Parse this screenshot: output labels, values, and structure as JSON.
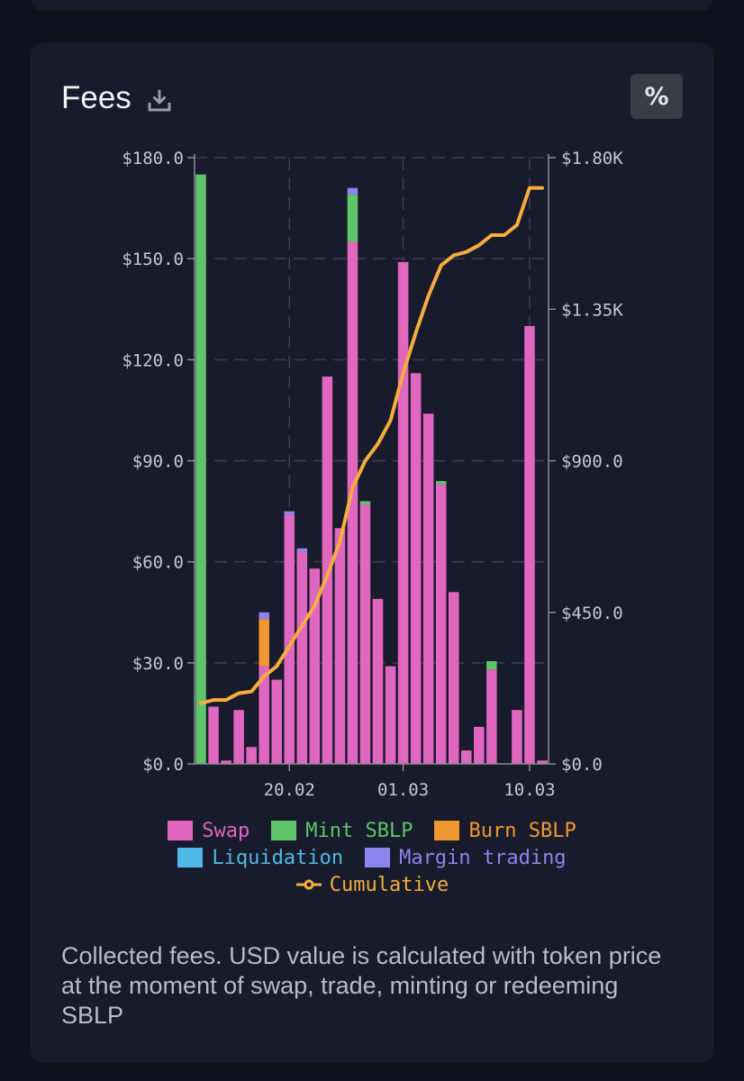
{
  "card": {
    "title": "Fees",
    "percent_label": "%"
  },
  "caption": "Collected fees. USD value is calculated with token price at the moment of swap, trade, minting or redeeming SBLP",
  "colors": {
    "swap": "#e066c0",
    "mint": "#5ec56a",
    "burn": "#f0982f",
    "liquidation": "#4fb8e8",
    "margin": "#8e84f0",
    "cumulative": "#f5ad3e"
  },
  "chart_data": {
    "type": "bar",
    "stacked": true,
    "x_tick_labels": [
      "20.02",
      "01.03",
      "10.03"
    ],
    "y_left": {
      "ticks": [
        "$0.0",
        "$30.0",
        "$60.0",
        "$90.0",
        "$120.0",
        "$150.0",
        "$180.0"
      ],
      "ylim": [
        0,
        180
      ]
    },
    "y_right": {
      "ticks": [
        "$0.0",
        "$450.0",
        "$900.0",
        "$1.35K",
        "$1.80K"
      ],
      "ylim": [
        0,
        1800
      ]
    },
    "legend": [
      "Swap",
      "Mint SBLP",
      "Burn SBLP",
      "Liquidation",
      "Margin trading",
      "Cumulative"
    ],
    "series": [
      {
        "name": "Swap",
        "values": [
          0,
          17,
          1,
          16,
          5,
          29,
          25,
          74,
          63,
          58,
          115,
          70,
          155,
          77,
          49,
          29,
          149,
          116,
          104,
          83,
          51,
          4,
          11,
          28,
          0,
          16,
          130,
          1
        ]
      },
      {
        "name": "Mint SBLP",
        "values": [
          175,
          0,
          0,
          0,
          0,
          0,
          0,
          0,
          0,
          0,
          0,
          0,
          14,
          1,
          0,
          0,
          0,
          0,
          0,
          1,
          0,
          0,
          0,
          2.5,
          0,
          0,
          0,
          0
        ]
      },
      {
        "name": "Burn SBLP",
        "values": [
          0,
          0,
          0,
          0,
          0,
          14,
          0,
          0,
          0,
          0,
          0,
          0,
          0,
          0,
          0,
          0,
          0,
          0,
          0,
          0,
          0,
          0,
          0,
          0,
          0,
          0,
          0,
          0
        ]
      },
      {
        "name": "Liquidation",
        "values": [
          0,
          0,
          0,
          0,
          0,
          0,
          0,
          0,
          0,
          0,
          0,
          0,
          0,
          0,
          0,
          0,
          0,
          0,
          0,
          0,
          0,
          0,
          0,
          0,
          0,
          0,
          0,
          0
        ]
      },
      {
        "name": "Margin trading",
        "values": [
          0,
          0,
          0,
          0,
          0,
          2,
          0,
          1,
          1,
          0,
          0,
          0,
          2,
          0,
          0,
          0,
          0,
          0,
          0,
          0,
          0,
          0,
          0,
          0,
          0,
          0,
          0,
          0
        ]
      }
    ],
    "cumulative": [
      180,
      190,
      190,
      210,
      215,
      260,
      290,
      350,
      410,
      470,
      560,
      660,
      820,
      900,
      950,
      1020,
      1160,
      1280,
      1390,
      1480,
      1510,
      1520,
      1540,
      1570,
      1570,
      1600,
      1710,
      1710
    ]
  }
}
